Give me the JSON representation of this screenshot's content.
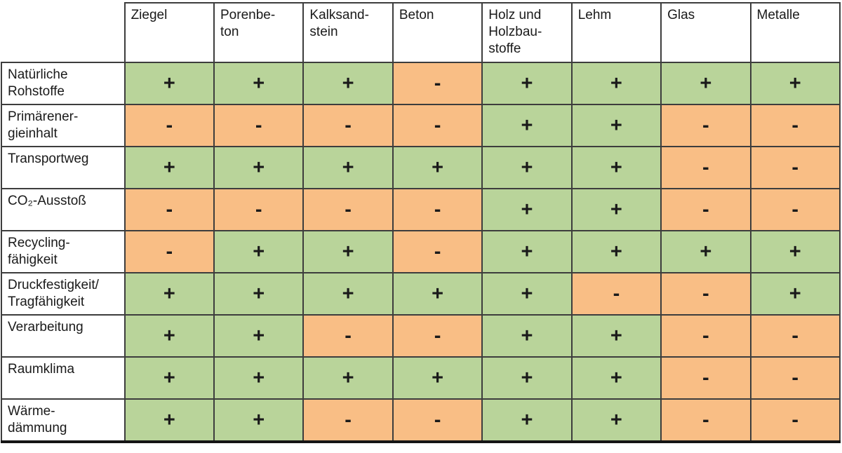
{
  "chart_data": {
    "type": "table",
    "columns": [
      "Ziegel",
      "Porenbe-\nton",
      "Kalksand-\nstein",
      "Beton",
      "Holz und\nHolzbau-\nstoffe",
      "Lehm",
      "Glas",
      "Metalle"
    ],
    "rows": [
      {
        "label": "Natürliche\nRohstoffe",
        "values": [
          "+",
          "+",
          "+",
          "-",
          "+",
          "+",
          "+",
          "+"
        ]
      },
      {
        "label": "Primärener-\ngieinhalt",
        "values": [
          "-",
          "-",
          "-",
          "-",
          "+",
          "+",
          "-",
          "-"
        ]
      },
      {
        "label": "Transportweg",
        "values": [
          "+",
          "+",
          "+",
          "+",
          "+",
          "+",
          "-",
          "-"
        ]
      },
      {
        "label": "CO₂-Ausstoß",
        "values": [
          "-",
          "-",
          "-",
          "-",
          "+",
          "+",
          "-",
          "-"
        ]
      },
      {
        "label": "Recycling-\nfähigkeit",
        "values": [
          "-",
          "+",
          "+",
          "-",
          "+",
          "+",
          "+",
          "+"
        ]
      },
      {
        "label": "Druckfestigkeit/\nTragfähigkeit",
        "values": [
          "+",
          "+",
          "+",
          "+",
          "+",
          "-",
          "-",
          "+"
        ]
      },
      {
        "label": "Verarbeitung",
        "values": [
          "+",
          "+",
          "-",
          "-",
          "+",
          "+",
          "-",
          "-"
        ]
      },
      {
        "label": "Raumklima",
        "values": [
          "+",
          "+",
          "+",
          "+",
          "+",
          "+",
          "-",
          "-"
        ]
      },
      {
        "label": "Wärme-\ndämmung",
        "values": [
          "+",
          "+",
          "-",
          "-",
          "+",
          "+",
          "-",
          "-"
        ]
      }
    ],
    "legend": {
      "positive": "+",
      "negative": "-"
    },
    "colors": {
      "positive_bg": "#b9d49a",
      "negative_bg": "#f9be85",
      "grid": "#3d3d3d",
      "text": "#1a1a1a",
      "header_bg": "#ffffff"
    }
  }
}
